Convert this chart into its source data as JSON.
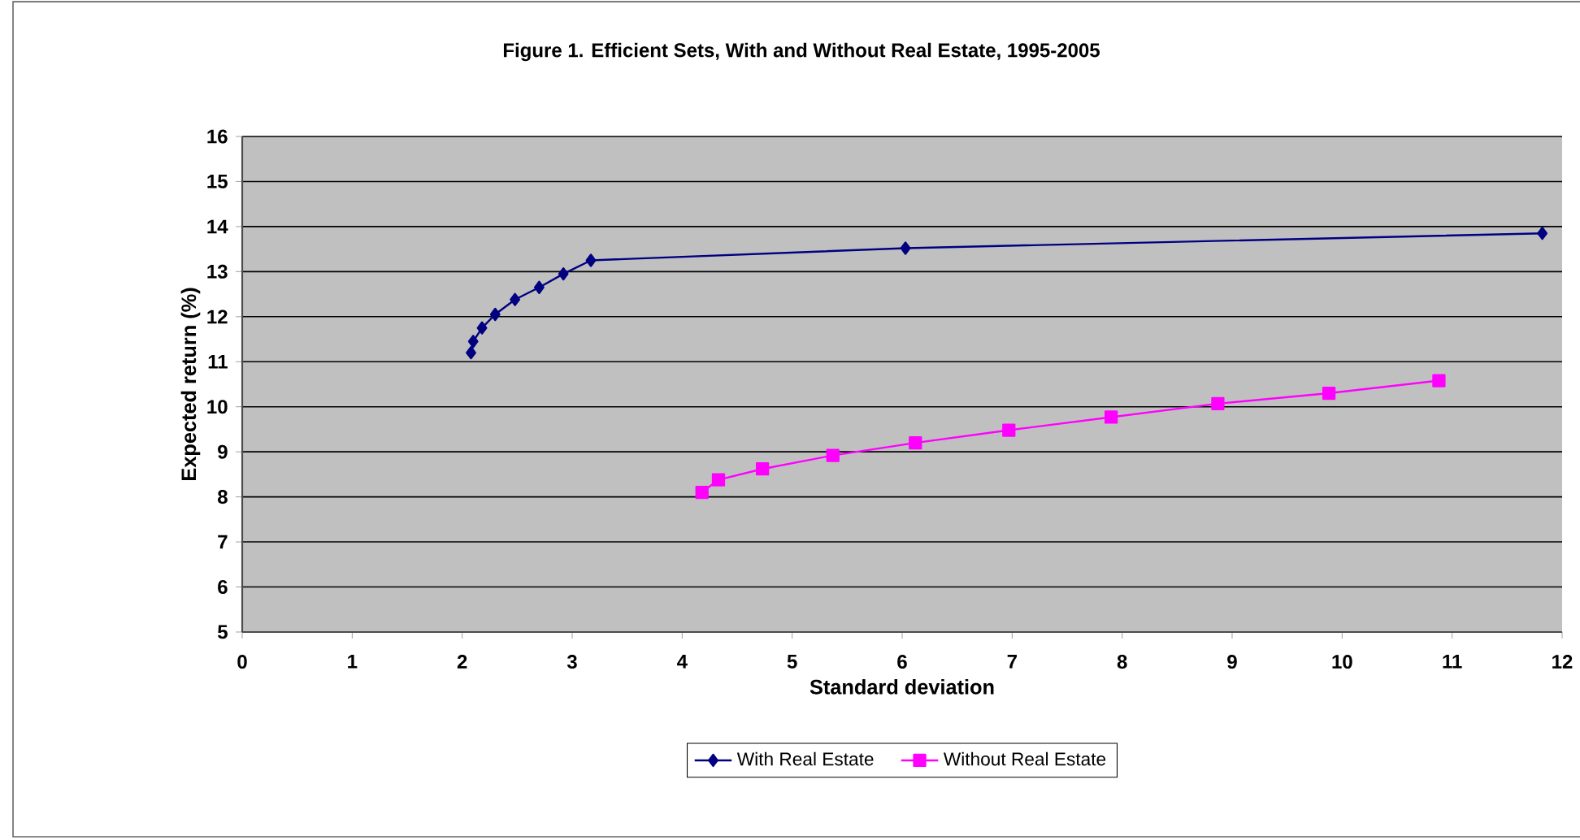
{
  "chart_data": {
    "type": "line",
    "title": "Figure 1. Efficient Sets, With and Without Real Estate, 1995-2005",
    "xlabel": "Standard deviation",
    "ylabel": "Expected return (%)",
    "xlim": [
      0,
      12
    ],
    "xticks": [
      0,
      1,
      2,
      3,
      4,
      5,
      6,
      7,
      8,
      9,
      10,
      11,
      12
    ],
    "ylim": [
      5,
      16
    ],
    "yticks": [
      5,
      6,
      7,
      8,
      9,
      10,
      11,
      12,
      13,
      14,
      15,
      16
    ],
    "grid": "y",
    "legend": "bottom",
    "line_style": "solid",
    "series": [
      {
        "name": "With Real Estate",
        "color": "#000080",
        "marker": "diamond",
        "x": [
          2.08,
          2.1,
          2.18,
          2.3,
          2.48,
          2.7,
          2.92,
          3.17,
          6.03,
          11.82
        ],
        "values": [
          11.2,
          11.45,
          11.75,
          12.05,
          12.38,
          12.65,
          12.95,
          13.25,
          13.52,
          13.85
        ]
      },
      {
        "name": "Without Real Estate",
        "color": "#ff00ff",
        "marker": "square",
        "x": [
          4.18,
          4.33,
          4.73,
          5.37,
          6.12,
          6.97,
          7.9,
          8.87,
          9.88,
          10.88
        ],
        "values": [
          8.1,
          8.38,
          8.62,
          8.92,
          9.2,
          9.48,
          9.77,
          10.07,
          10.3,
          10.58
        ]
      }
    ]
  }
}
